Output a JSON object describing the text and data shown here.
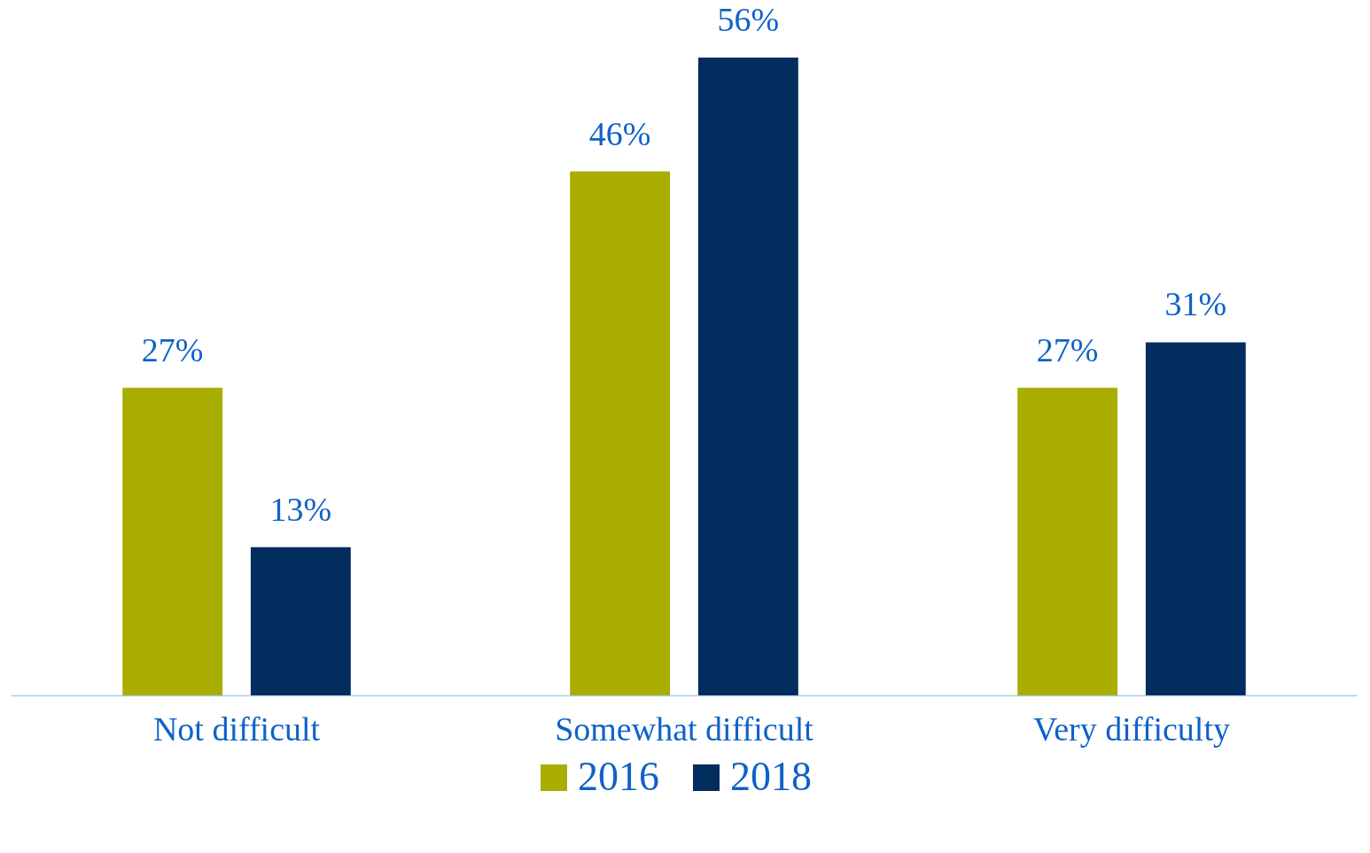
{
  "chart_data": {
    "type": "bar",
    "categories": [
      "Not difficult",
      "Somewhat difficult",
      "Very difficulty"
    ],
    "series": [
      {
        "name": "2016",
        "color": "#a8ad00",
        "values": [
          27,
          46,
          27
        ],
        "value_labels": [
          "27%",
          "46%",
          "27%"
        ]
      },
      {
        "name": "2018",
        "color": "#022d5e",
        "values": [
          13,
          56,
          31
        ],
        "value_labels": [
          "13%",
          "56%",
          "31%"
        ]
      }
    ],
    "grid": false,
    "legend": "bottom"
  }
}
